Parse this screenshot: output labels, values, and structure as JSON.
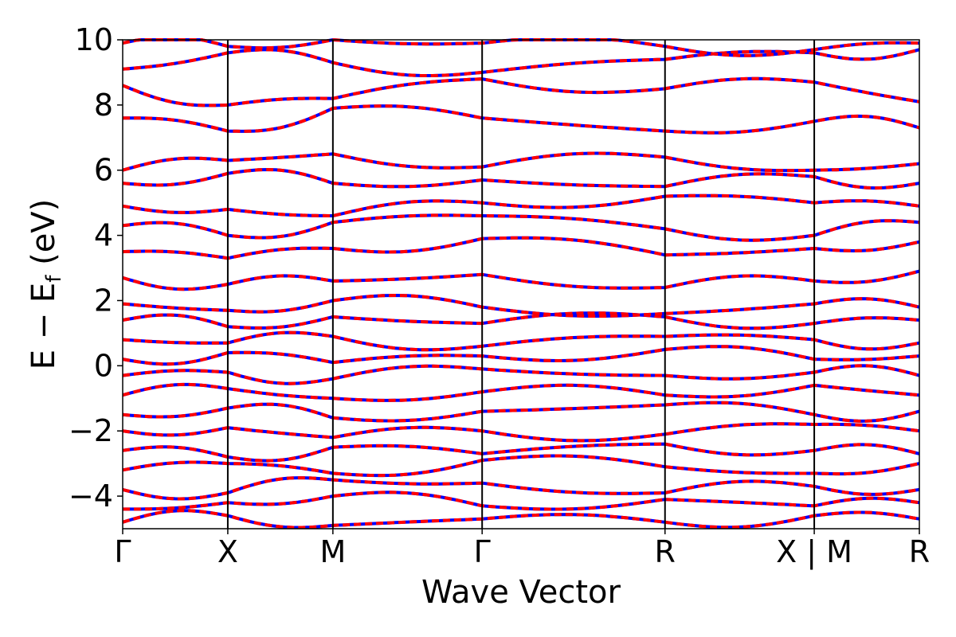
{
  "chart_data": {
    "type": "line",
    "xlabel": "Wave Vector",
    "ylabel": "E − E",
    "ylabel_sub": "f",
    "ylabel_unit": " (eV)",
    "ylim": [
      -5,
      10
    ],
    "y_ticks": [
      10,
      8,
      6,
      4,
      2,
      0,
      -2,
      -4
    ],
    "y_tick_labels": [
      "10",
      "8",
      "6",
      "4",
      "2",
      "0",
      "−2",
      "−4"
    ],
    "x_ticks": [
      {
        "label": "Γ",
        "k": 0.0
      },
      {
        "label": "X",
        "k": 0.5
      },
      {
        "label": "M",
        "k": 1.0
      },
      {
        "label": "Γ",
        "k": 1.71
      },
      {
        "label": "R",
        "k": 2.58
      },
      {
        "label": "X | M",
        "k": 3.29
      },
      {
        "label": "R",
        "k": 3.79
      }
    ],
    "series": [
      {
        "line_color": "#0000ff",
        "style": "solid"
      },
      {
        "line_color": "#ff0000",
        "style": "dashed"
      }
    ],
    "sample_bands": [
      [
        -4.8,
        -4.6,
        -4.9,
        -4.7,
        -4.8,
        -4.6,
        -4.7,
        -4.7
      ],
      [
        -4.4,
        -4.2,
        -4.0,
        -4.3,
        -4.1,
        -4.3,
        -4.2,
        -4.4
      ],
      [
        -3.8,
        -3.9,
        -3.5,
        -3.6,
        -3.9,
        -3.7,
        -3.8,
        -3.6
      ],
      [
        -3.2,
        -3.0,
        -3.3,
        -2.9,
        -3.1,
        -3.3,
        -3.0,
        -3.2
      ],
      [
        -2.6,
        -2.8,
        -2.5,
        -2.7,
        -2.4,
        -2.6,
        -2.7,
        -2.5
      ],
      [
        -2.0,
        -1.9,
        -2.2,
        -2.0,
        -2.1,
        -1.8,
        -2.0,
        -2.1
      ],
      [
        -1.5,
        -1.3,
        -1.6,
        -1.4,
        -1.2,
        -1.5,
        -1.4,
        -1.3
      ],
      [
        -0.9,
        -0.7,
        -1.0,
        -0.8,
        -0.9,
        -0.6,
        -0.9,
        -0.8
      ],
      [
        -0.3,
        -0.2,
        -0.4,
        -0.1,
        -0.3,
        -0.2,
        -0.3,
        -0.1
      ],
      [
        0.2,
        0.4,
        0.1,
        0.3,
        0.5,
        0.2,
        0.3,
        0.4
      ],
      [
        0.8,
        0.7,
        0.9,
        0.6,
        0.9,
        0.8,
        0.7,
        0.9
      ],
      [
        1.4,
        1.2,
        1.5,
        1.3,
        1.5,
        1.3,
        1.4,
        1.2
      ],
      [
        1.9,
        1.7,
        2.0,
        1.8,
        1.6,
        1.9,
        1.8,
        1.7
      ],
      [
        2.7,
        2.5,
        2.6,
        2.8,
        2.4,
        2.6,
        2.9,
        2.7
      ],
      [
        3.5,
        3.3,
        3.6,
        3.9,
        3.4,
        3.6,
        3.8,
        3.5
      ],
      [
        4.3,
        4.0,
        4.4,
        4.6,
        4.2,
        4.0,
        4.4,
        4.2
      ],
      [
        4.9,
        4.8,
        4.6,
        5.0,
        5.2,
        5.0,
        4.9,
        5.0
      ],
      [
        5.6,
        5.9,
        5.6,
        5.7,
        5.5,
        5.8,
        5.6,
        5.5
      ],
      [
        6.0,
        6.3,
        6.5,
        6.1,
        6.4,
        6.0,
        6.2,
        6.0
      ],
      [
        7.6,
        7.2,
        7.9,
        7.6,
        7.2,
        7.5,
        7.3,
        7.4
      ],
      [
        8.6,
        8.0,
        8.2,
        8.8,
        8.5,
        8.7,
        8.1,
        8.7
      ],
      [
        9.1,
        9.6,
        9.3,
        9.0,
        9.4,
        9.6,
        9.7,
        9.4
      ],
      [
        9.9,
        9.8,
        10.0,
        9.9,
        9.8,
        9.7,
        9.9,
        9.8
      ]
    ]
  }
}
